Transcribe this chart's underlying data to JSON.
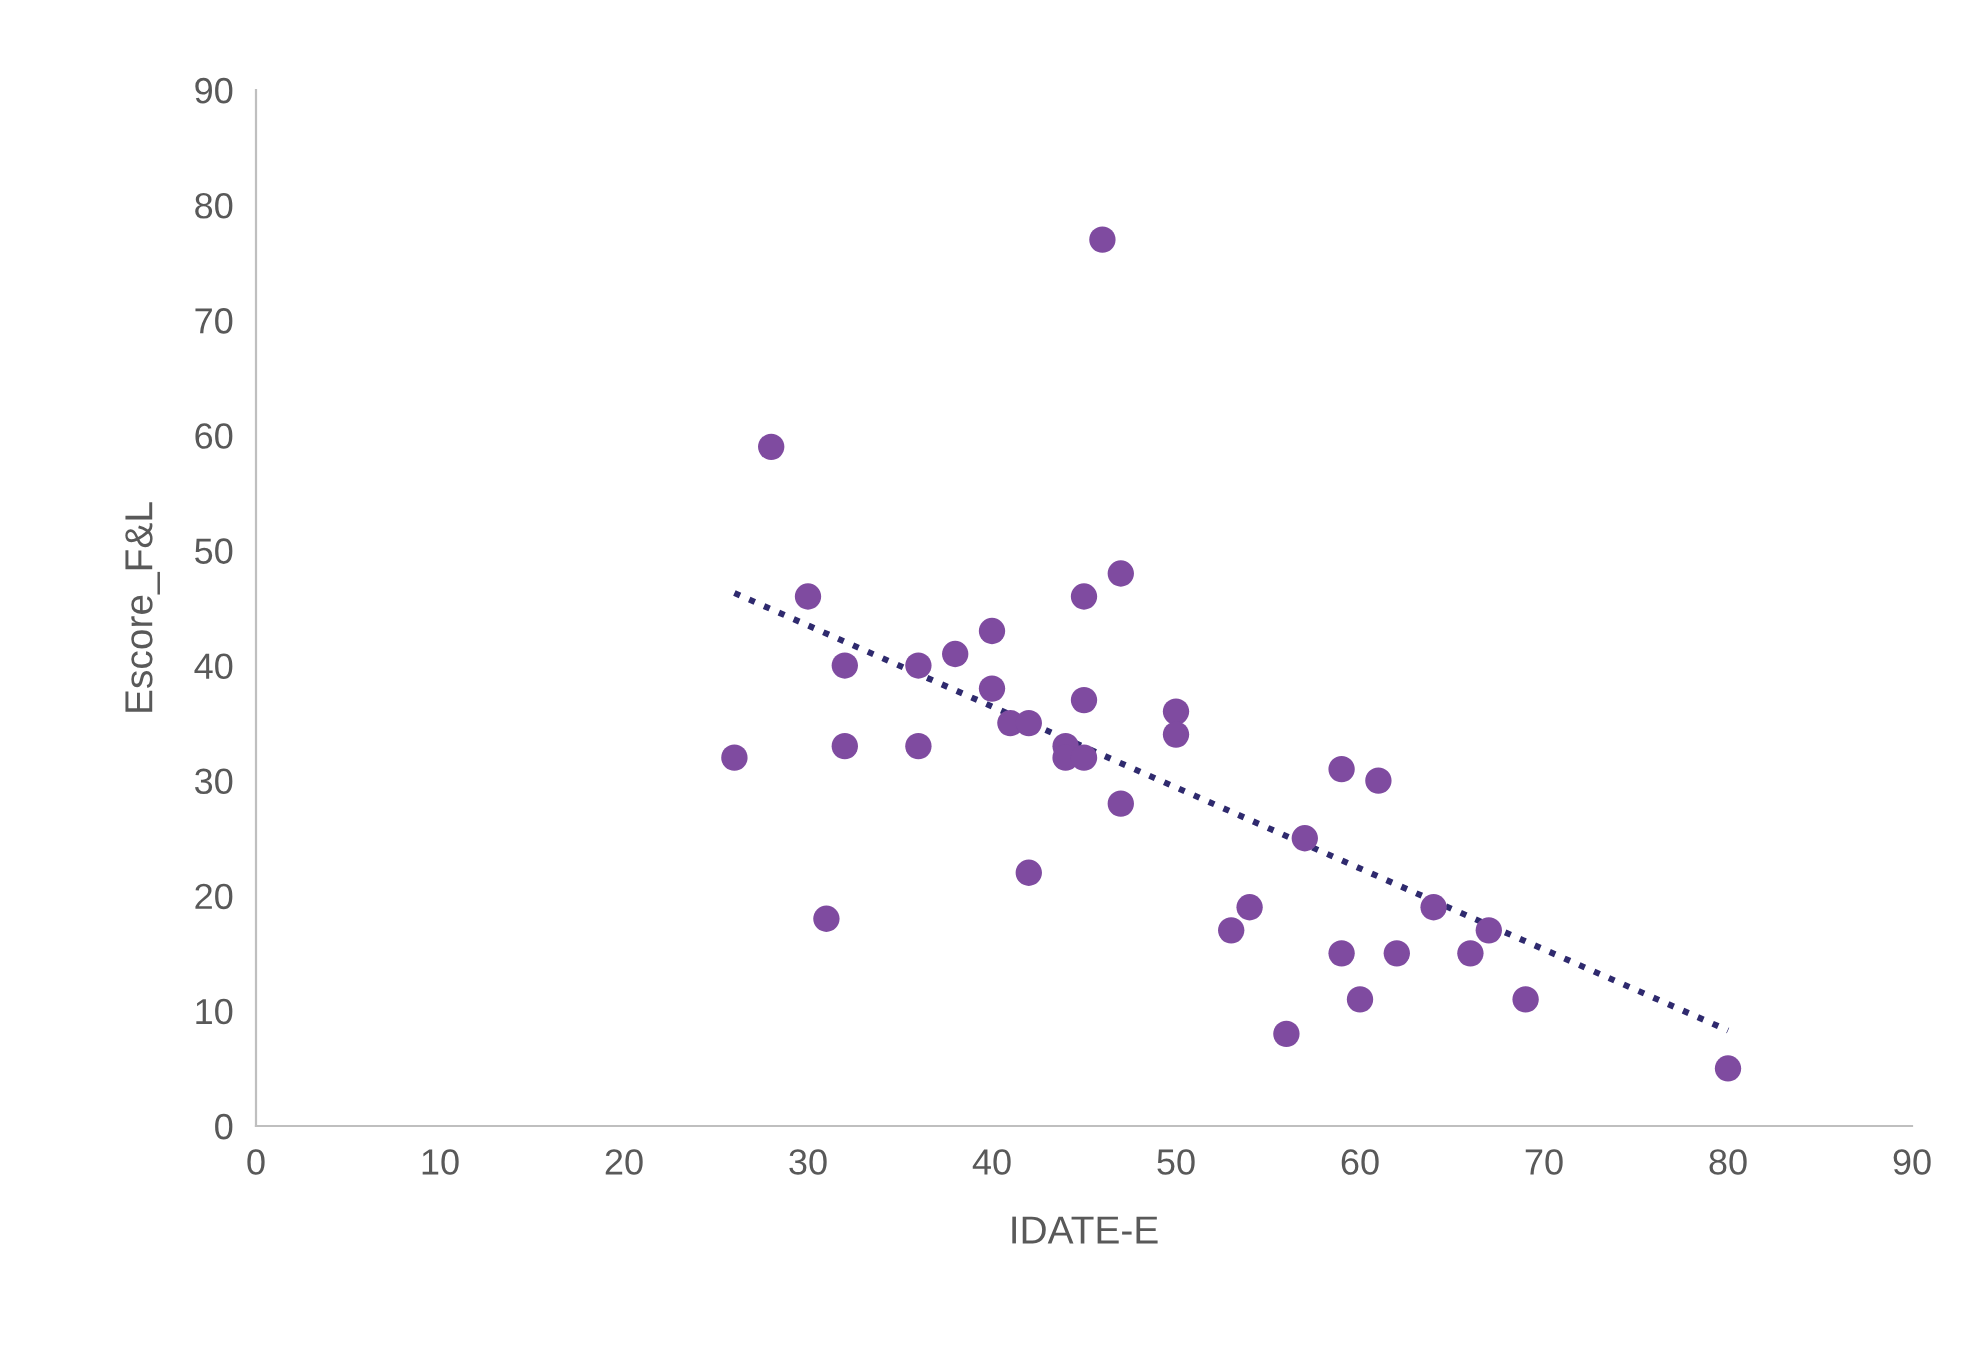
{
  "chart_data": {
    "type": "scatter",
    "xlabel": "IDATE-E",
    "ylabel": "Escore_F&L",
    "xlim": [
      0,
      90
    ],
    "ylim": [
      0,
      90
    ],
    "xticks": [
      0,
      10,
      20,
      30,
      40,
      50,
      60,
      70,
      80,
      90
    ],
    "yticks": [
      0,
      10,
      20,
      30,
      40,
      50,
      60,
      70,
      80,
      90
    ],
    "grid": false,
    "legend": false,
    "marker": "circle",
    "series": [
      {
        "color": "#7f4ba0",
        "x": [
          26,
          28,
          30,
          31,
          32,
          32,
          36,
          36,
          38,
          40,
          40,
          41,
          42,
          42,
          44,
          44,
          45,
          45,
          45,
          46,
          47,
          47,
          50,
          50,
          53,
          54,
          56,
          57,
          59,
          59,
          60,
          61,
          62,
          64,
          66,
          67,
          69,
          80
        ],
        "values": [
          32,
          59,
          46,
          18,
          40,
          33,
          40,
          33,
          41,
          43,
          38,
          35,
          35,
          22,
          33,
          32,
          32,
          37,
          46,
          77,
          48,
          28,
          36,
          34,
          17,
          19,
          8,
          25,
          31,
          15,
          11,
          30,
          15,
          19,
          15,
          17,
          11,
          5
        ]
      },
      {
        "type": "line",
        "color": "#2f2a6e",
        "line_style": "dotted",
        "marker": "none",
        "x": [
          26,
          80
        ],
        "values": [
          46.3,
          8.3
        ]
      }
    ]
  }
}
